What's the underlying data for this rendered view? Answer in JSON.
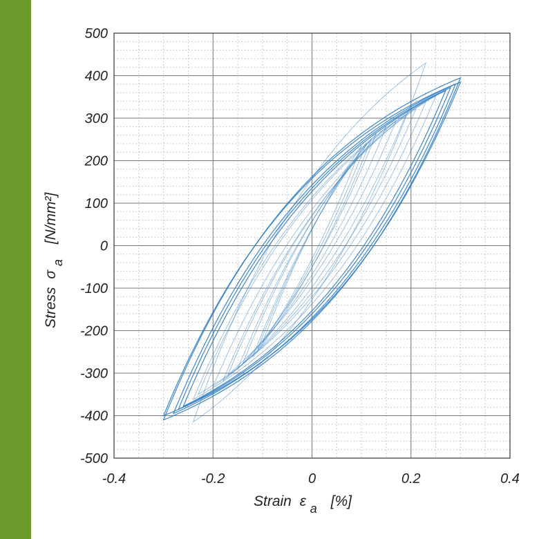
{
  "colors": {
    "sidebar": "#6b9a2b",
    "series": "#2b7bc4",
    "grid": "#555555"
  },
  "chart_data": {
    "type": "line",
    "title": "",
    "xlabel": {
      "main": "Strain",
      "symbol": "ε",
      "sub": "a",
      "unit": "[%]"
    },
    "ylabel": {
      "main": "Stress",
      "symbol": "σ",
      "sub": "a",
      "unit": "[N/mm²]"
    },
    "xlim": [
      -0.4,
      0.4
    ],
    "ylim": [
      -500,
      500
    ],
    "xticks": [
      -0.4,
      -0.2,
      0,
      0.2,
      0.4
    ],
    "xtick_labels": [
      "-0.4",
      "-0.2",
      "0",
      "0.2",
      "0.4"
    ],
    "yticks": [
      500,
      400,
      300,
      200,
      100,
      0,
      -100,
      -200,
      -300,
      -400,
      -500
    ],
    "ytick_labels": [
      "500",
      "400",
      "300",
      "200",
      "100",
      "0",
      "-100",
      "-200",
      "-300",
      "-400",
      "-500"
    ],
    "grid": true,
    "minor_grid": true,
    "series_description": "cyclic stress-strain hysteresis loops; each loop given by strain amplitude [%] and peak stress [N/mm²]",
    "loops": [
      {
        "strain_max": 0.3,
        "strain_min": -0.3,
        "stress_max": 395,
        "stress_min": -410
      },
      {
        "strain_max": 0.3,
        "strain_min": -0.3,
        "stress_max": 385,
        "stress_min": -400
      },
      {
        "strain_max": 0.29,
        "strain_min": -0.28,
        "stress_max": 380,
        "stress_min": -395
      },
      {
        "strain_max": 0.28,
        "strain_min": -0.27,
        "stress_max": 372,
        "stress_min": -385
      },
      {
        "strain_max": 0.27,
        "strain_min": -0.26,
        "stress_max": 365,
        "stress_min": -378
      },
      {
        "strain_max": 0.25,
        "strain_min": -0.24,
        "stress_max": 352,
        "stress_min": -362
      },
      {
        "strain_max": 0.23,
        "strain_min": -0.23,
        "stress_max": 338,
        "stress_min": -350
      },
      {
        "strain_max": 0.21,
        "strain_min": -0.2,
        "stress_max": 322,
        "stress_min": -332
      },
      {
        "strain_max": 0.19,
        "strain_min": -0.18,
        "stress_max": 308,
        "stress_min": -318
      },
      {
        "strain_max": 0.17,
        "strain_min": -0.17,
        "stress_max": 294,
        "stress_min": -304
      },
      {
        "strain_max": 0.15,
        "strain_min": -0.15,
        "stress_max": 280,
        "stress_min": -290
      },
      {
        "strain_max": 0.13,
        "strain_min": -0.14,
        "stress_max": 264,
        "stress_min": -278
      },
      {
        "strain_max": 0.12,
        "strain_min": -0.12,
        "stress_max": 252,
        "stress_min": -262
      },
      {
        "strain_max": 0.11,
        "strain_min": -0.11,
        "stress_max": 242,
        "stress_min": -244
      },
      {
        "strain_max": 0.1,
        "strain_min": -0.1,
        "stress_max": 235,
        "stress_min": -228
      },
      {
        "strain_max": 0.23,
        "strain_min": -0.24,
        "stress_max": 430,
        "stress_min": -415
      }
    ]
  }
}
